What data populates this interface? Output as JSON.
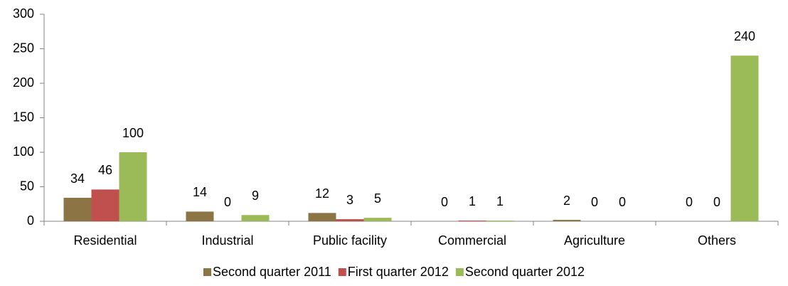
{
  "chart_data": {
    "type": "bar",
    "categories": [
      "Residential",
      "Industrial",
      "Public facility",
      "Commercial",
      "Agriculture",
      "Others"
    ],
    "series": [
      {
        "name": "Second quarter 2011",
        "color": "#8c7444",
        "values": [
          34,
          14,
          12,
          0,
          2,
          0
        ]
      },
      {
        "name": "First quarter 2012",
        "color": "#c0504d",
        "values": [
          46,
          0,
          3,
          1,
          0,
          0
        ]
      },
      {
        "name": "Second quarter 2012",
        "color": "#9bbb59",
        "values": [
          100,
          9,
          5,
          1,
          0,
          240
        ]
      }
    ],
    "ylim": [
      0,
      300
    ],
    "yticks": [
      0,
      50,
      100,
      150,
      200,
      250,
      300
    ],
    "grid": false,
    "legend": "bottom"
  }
}
